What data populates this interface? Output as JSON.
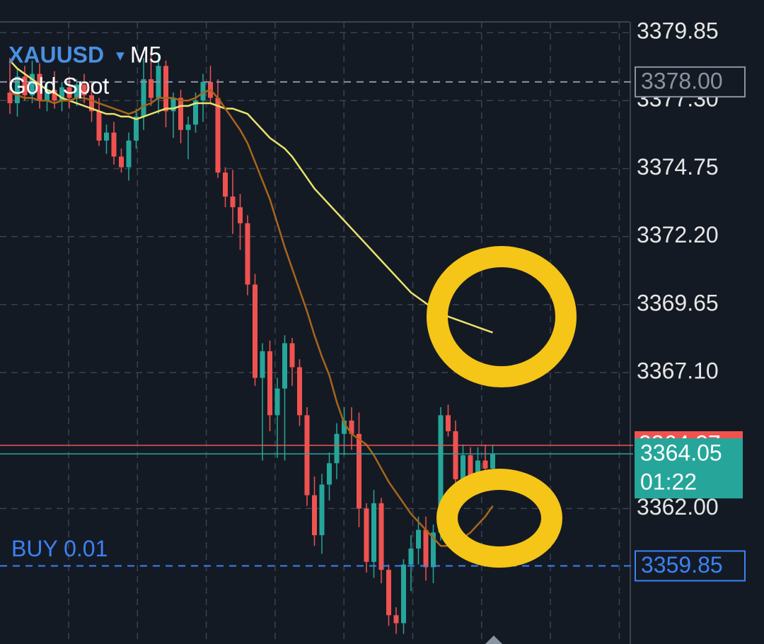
{
  "chart_data": {
    "type": "candlestick",
    "symbol": "XAUUSD",
    "timeframe": "M5",
    "description": "Gold Spot",
    "ylim": [
      3356.92,
      3380.25
    ],
    "yticks": [
      3379.85,
      {
        "value": 3377.3,
        "label": "3377.30"
      },
      3374.75,
      {
        "value": 3372.2,
        "label": "3372.20"
      },
      3369.65,
      {
        "value": 3367.1,
        "label": "3367.10"
      },
      {
        "value": 3362,
        "label": "3362.00"
      }
    ],
    "grid": true,
    "up_color": "#26a69a",
    "down_color": "#ef5350",
    "open": [
      3377.6,
      3377.2,
      3378.2,
      3377.5,
      3378.3,
      3377.3,
      3377.7,
      3377.3,
      3377.8,
      3377.4,
      3377.9,
      3377.5,
      3376.9,
      3375.8,
      3376.1,
      3375.2,
      3374.8,
      3375.8,
      3376.7,
      3378.1,
      3377.4,
      3378.6,
      3376.9,
      3377.4,
      3376.2,
      3376.4,
      3377.3,
      3378.0,
      3377.4,
      3374.6,
      3373.7,
      3373.3,
      3372.7,
      3370.4,
      3366.9,
      3367.9,
      3365.5,
      3366.5,
      3368.2,
      3367.3,
      3365.5,
      3362.5,
      3361.0,
      3362.9,
      3363.7,
      3364.8,
      3365.3,
      3364.8,
      3362.0,
      3360.0,
      3362.2,
      3359.7,
      3358.0,
      3357.7,
      3359.9,
      3360.5,
      3361.2,
      3359.8,
      3361.1,
      3365.5,
      3364.9,
      3363.1,
      3364.0,
      3363.0,
      3363.8,
      3363.5
    ],
    "high": [
      3378.9,
      3378.5,
      3378.6,
      3378.8,
      3378.7,
      3377.9,
      3378.4,
      3378.0,
      3378.2,
      3378.1,
      3378.3,
      3378.0,
      3377.4,
      3376.4,
      3376.5,
      3375.5,
      3376.1,
      3377.0,
      3378.9,
      3379.1,
      3379.0,
      3378.8,
      3377.6,
      3377.7,
      3376.7,
      3377.6,
      3378.3,
      3378.6,
      3378.1,
      3374.8,
      3374.7,
      3373.8,
      3373.0,
      3370.8,
      3368.2,
      3368.3,
      3366.9,
      3368.5,
      3368.4,
      3367.6,
      3365.8,
      3363.2,
      3363.3,
      3364.1,
      3365.2,
      3365.8,
      3365.8,
      3365.6,
      3362.2,
      3362.7,
      3362.4,
      3359.9,
      3358.3,
      3360.1,
      3361.0,
      3361.7,
      3361.7,
      3361.4,
      3365.8,
      3365.9,
      3365.3,
      3364.4,
      3364.3,
      3364.3,
      3364.4,
      3364.4
    ],
    "low": [
      3376.8,
      3376.7,
      3377.3,
      3377.2,
      3377.0,
      3376.9,
      3377.0,
      3376.9,
      3377.0,
      3377.1,
      3377.2,
      3376.5,
      3375.6,
      3375.3,
      3374.9,
      3374.6,
      3374.3,
      3375.5,
      3376.2,
      3377.1,
      3376.8,
      3376.3,
      3375.9,
      3375.7,
      3375.1,
      3376.1,
      3376.5,
      3377.2,
      3374.4,
      3373.3,
      3372.3,
      3371.7,
      3370.0,
      3366.6,
      3363.8,
      3364.9,
      3363.9,
      3363.8,
      3366.6,
      3365.1,
      3362.1,
      3360.6,
      3360.3,
      3362.3,
      3363.1,
      3364.0,
      3364.2,
      3361.3,
      3359.6,
      3359.4,
      3359.2,
      3357.6,
      3357.3,
      3357.3,
      3358.9,
      3359.9,
      3359.3,
      3359.2,
      3360.8,
      3364.7,
      3362.6,
      3362.4,
      3362.6,
      3362.7,
      3363.2,
      3363.3
    ],
    "close": [
      3377.2,
      3378.2,
      3377.5,
      3378.3,
      3377.3,
      3377.7,
      3377.3,
      3377.8,
      3377.4,
      3377.9,
      3377.5,
      3376.9,
      3375.8,
      3376.1,
      3375.2,
      3374.8,
      3375.8,
      3376.7,
      3378.1,
      3377.4,
      3378.6,
      3376.9,
      3377.4,
      3376.2,
      3376.4,
      3377.3,
      3378.0,
      3377.4,
      3374.6,
      3373.7,
      3373.3,
      3372.7,
      3370.4,
      3366.9,
      3367.9,
      3365.5,
      3366.5,
      3368.2,
      3367.3,
      3365.5,
      3362.5,
      3361.0,
      3362.9,
      3363.7,
      3364.8,
      3365.3,
      3364.8,
      3362.0,
      3360.0,
      3362.2,
      3359.7,
      3358.0,
      3357.7,
      3359.9,
      3360.5,
      3361.2,
      3359.8,
      3361.1,
      3365.5,
      3364.9,
      3363.1,
      3364.0,
      3363.0,
      3363.8,
      3363.5,
      3364.05
    ],
    "ma_lines": [
      {
        "color": "#eae36b",
        "values": [
          3378.8,
          3378.5,
          3378.3,
          3378.1,
          3377.9,
          3377.7,
          3377.6,
          3377.4,
          3377.3,
          3377.2,
          3377.1,
          3377.0,
          3376.9,
          3376.8,
          3376.8,
          3376.7,
          3376.7,
          3376.6,
          3376.7,
          3376.8,
          3376.9,
          3377.0,
          3377.0,
          3377.1,
          3377.1,
          3377.2,
          3377.2,
          3377.2,
          3377.1,
          3377.0,
          3377.0,
          3376.9,
          3376.8,
          3376.5,
          3376.2,
          3375.9,
          3375.7,
          3375.5,
          3375.2,
          3374.8,
          3374.4,
          3374.0,
          3373.7,
          3373.4,
          3373.1,
          3372.8,
          3372.5,
          3372.2,
          3371.9,
          3371.6,
          3371.3,
          3371.0,
          3370.7,
          3370.4,
          3370.1,
          3369.9,
          3369.7,
          3369.5,
          3369.4,
          3369.2,
          3369.1,
          3369.0,
          3368.9,
          3368.8,
          3368.7,
          3368.6
        ]
      },
      {
        "color": "#a8661a",
        "values": [
          3377.6,
          3377.5,
          3377.4,
          3377.4,
          3377.3,
          3377.3,
          3377.2,
          3377.3,
          3377.3,
          3377.4,
          3377.4,
          3377.3,
          3377.2,
          3377.1,
          3377.0,
          3376.9,
          3376.8,
          3376.9,
          3377.1,
          3377.2,
          3377.4,
          3377.4,
          3377.4,
          3377.3,
          3377.3,
          3377.4,
          3377.6,
          3377.7,
          3377.4,
          3377.0,
          3376.6,
          3376.2,
          3375.7,
          3375.0,
          3374.3,
          3373.6,
          3372.7,
          3371.8,
          3371.0,
          3370.2,
          3369.4,
          3368.5,
          3367.7,
          3367.0,
          3366.0,
          3365.2,
          3364.8,
          3364.6,
          3364.4,
          3364.0,
          3363.5,
          3363.0,
          3362.6,
          3362.2,
          3361.8,
          3361.5,
          3361.2,
          3360.9,
          3360.6,
          3360.6,
          3360.7,
          3360.9,
          3361.1,
          3361.4,
          3361.7,
          3362.1
        ]
      }
    ],
    "stop_level": {
      "value": 3378,
      "label": "3378.00",
      "color": "#8a93a0"
    },
    "ask": {
      "value": 3364.37,
      "color": "#ef5350"
    },
    "bid": {
      "value": 3364.05,
      "color": "#26a69a"
    },
    "bar_timer": "01:22",
    "order": {
      "label": "BUY 0.01",
      "price": 3359.85,
      "color": "#3b82f6"
    }
  }
}
